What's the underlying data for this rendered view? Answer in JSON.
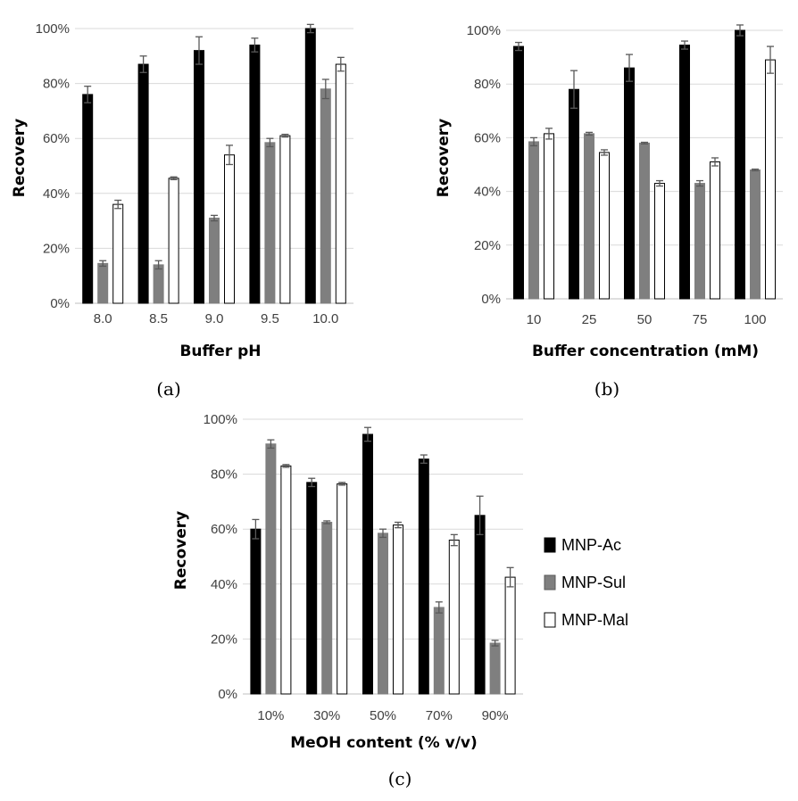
{
  "chart_data": [
    {
      "id": "a",
      "type": "bar",
      "panel_label": "(a)",
      "xlabel": "Buffer pH",
      "ylabel": "Recovery",
      "ylim": [
        0,
        100
      ],
      "yticks": [
        "0%",
        "20%",
        "40%",
        "60%",
        "80%",
        "100%"
      ],
      "categories": [
        "8.0",
        "8.5",
        "9.0",
        "9.5",
        "10.0"
      ],
      "series": [
        {
          "name": "MNP-Ac",
          "values": [
            76,
            87,
            92,
            94,
            100
          ],
          "errors": [
            3,
            3,
            5,
            2.5,
            1.5
          ]
        },
        {
          "name": "MNP-Sul",
          "values": [
            14.5,
            14,
            31,
            58.5,
            78
          ],
          "errors": [
            1,
            1.5,
            1,
            1.5,
            3.5
          ]
        },
        {
          "name": "MNP-Mal",
          "values": [
            36,
            45.5,
            54,
            61,
            87
          ],
          "errors": [
            1.5,
            0.5,
            3.5,
            0.5,
            2.5
          ]
        }
      ]
    },
    {
      "id": "b",
      "type": "bar",
      "panel_label": "(b)",
      "xlabel": "Buffer concentration (mM)",
      "ylabel": "Recovery",
      "ylim": [
        0,
        100
      ],
      "yticks": [
        "0%",
        "20%",
        "40%",
        "60%",
        "80%",
        "100%"
      ],
      "categories": [
        "10",
        "25",
        "50",
        "75",
        "100"
      ],
      "series": [
        {
          "name": "MNP-Ac",
          "values": [
            94,
            78,
            86,
            94.5,
            100
          ],
          "errors": [
            1.5,
            7,
            5,
            1.5,
            2
          ]
        },
        {
          "name": "MNP-Sul",
          "values": [
            58.5,
            61.5,
            58,
            43,
            48
          ],
          "errors": [
            1.5,
            0.5,
            0.3,
            1,
            0.3
          ]
        },
        {
          "name": "MNP-Mal",
          "values": [
            61.5,
            54.5,
            43,
            51,
            89
          ],
          "errors": [
            2,
            1,
            1,
            1.5,
            5
          ]
        }
      ]
    },
    {
      "id": "c",
      "type": "bar",
      "panel_label": "(c)",
      "xlabel": "MeOH content (% v/v)",
      "ylabel": "Recovery",
      "ylim": [
        0,
        100
      ],
      "yticks": [
        "0%",
        "20%",
        "40%",
        "60%",
        "80%",
        "100%"
      ],
      "categories": [
        "10%",
        "30%",
        "50%",
        "70%",
        "90%"
      ],
      "series": [
        {
          "name": "MNP-Ac",
          "values": [
            60,
            77,
            94.5,
            85.5,
            65
          ],
          "errors": [
            3.5,
            1.5,
            2.5,
            1.5,
            7
          ]
        },
        {
          "name": "MNP-Sul",
          "values": [
            91,
            62.5,
            58.5,
            31.5,
            18.5
          ],
          "errors": [
            1.5,
            0.5,
            1.5,
            2,
            1
          ]
        },
        {
          "name": "MNP-Mal",
          "values": [
            83,
            76.5,
            61.5,
            56,
            42.5
          ],
          "errors": [
            0.5,
            0.5,
            1,
            2,
            3.5
          ]
        }
      ]
    }
  ],
  "legend": {
    "entries": [
      {
        "name": "MNP-Ac",
        "color": "#000000"
      },
      {
        "name": "MNP-Sul",
        "color": "#7f7f7f"
      },
      {
        "name": "MNP-Mal",
        "color": "#ffffff"
      }
    ]
  },
  "colors": {
    "MNP-Ac": "#000000",
    "MNP-Sul": "#7f7f7f",
    "MNP-Mal": "#ffffff",
    "gridline": "#d9d9d9",
    "errorbar": "#595959"
  }
}
